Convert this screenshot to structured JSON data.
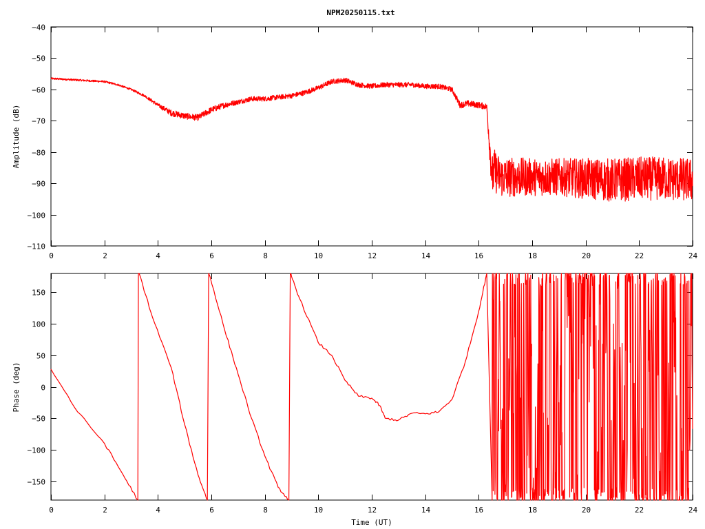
{
  "title": "NPM20250115.txt",
  "colors": {
    "series": "#ff0000",
    "axes": "#000000",
    "background": "#ffffff"
  },
  "chart_data": [
    {
      "type": "line",
      "id": "amplitude",
      "ylabel": "Amplitude (dB)",
      "xlabel": "",
      "xlim": [
        0,
        24
      ],
      "ylim": [
        -110,
        -40
      ],
      "xticks": [
        0,
        2,
        4,
        6,
        8,
        10,
        12,
        14,
        16,
        18,
        20,
        22,
        24
      ],
      "yticks": [
        -40,
        -50,
        -60,
        -70,
        -80,
        -90,
        -100,
        -110
      ],
      "grid": false,
      "legend": "none",
      "series": [
        {
          "x": [
            0,
            1,
            2,
            2.5,
            3,
            3.5,
            4,
            4.5,
            5,
            5.5,
            6,
            6.5,
            7,
            7.5,
            8,
            8.5,
            9,
            9.5,
            10,
            10.5,
            11,
            11.5,
            12,
            12.5,
            13,
            13.5,
            14,
            14.5,
            15,
            15.3,
            15.6,
            16,
            16.3,
            16.5,
            16.6,
            16.8,
            17,
            18,
            19,
            20,
            21,
            22,
            23,
            24
          ],
          "y": [
            -56.5,
            -57,
            -57.5,
            -58.5,
            -60,
            -62,
            -65,
            -67.5,
            -68.5,
            -69,
            -66.5,
            -65,
            -64,
            -63,
            -63,
            -62.5,
            -62,
            -61,
            -59.5,
            -57.5,
            -57,
            -58.5,
            -59,
            -58.5,
            -58.5,
            -58.5,
            -59,
            -59,
            -60,
            -65,
            -64.5,
            -65,
            -65.5,
            -88,
            -86,
            -88,
            -88,
            -88,
            -88,
            -88.5,
            -89,
            -88.5,
            -88.5,
            -89
          ],
          "noise": [
            0.3,
            0.3,
            0.3,
            0.3,
            0.3,
            0.4,
            0.6,
            1,
            1,
            1,
            1,
            0.9,
            0.8,
            0.8,
            0.8,
            0.8,
            0.8,
            0.8,
            0.8,
            0.8,
            0.8,
            0.8,
            0.8,
            0.8,
            0.8,
            0.8,
            0.8,
            0.8,
            0.8,
            1,
            1,
            1,
            1,
            7,
            7,
            6.5,
            6.5,
            6,
            6,
            6.5,
            7,
            7,
            7,
            7
          ]
        }
      ]
    },
    {
      "type": "line",
      "id": "phase",
      "ylabel": "Phase (deg)",
      "xlabel": "Time (UT)",
      "xlim": [
        0,
        24
      ],
      "ylim": [
        -180,
        180
      ],
      "xticks": [
        0,
        2,
        4,
        6,
        8,
        10,
        12,
        14,
        16,
        18,
        20,
        22,
        24
      ],
      "yticks": [
        150,
        100,
        50,
        0,
        -50,
        -100,
        -150
      ],
      "grid": false,
      "legend": "none",
      "series": [
        {
          "x": [
            0,
            1,
            2,
            2.7,
            3.25,
            3.27,
            3.3,
            3.8,
            4.5,
            5,
            5.5,
            5.85,
            5.9,
            5.95,
            6.5,
            7,
            7.5,
            8,
            8.5,
            8.9,
            8.95,
            9,
            9.3,
            10,
            10.5,
            11,
            11.5,
            12,
            12.3,
            12.5,
            13,
            13.5,
            14,
            14.5,
            15,
            15.5,
            16,
            16.3,
            16.5
          ],
          "y": [
            28,
            -40,
            -90,
            -140,
            -180,
            180,
            180,
            110,
            30,
            -60,
            -140,
            -180,
            180,
            175,
            90,
            20,
            -50,
            -110,
            -160,
            -180,
            180,
            175,
            140,
            70,
            50,
            10,
            -15,
            -18,
            -30,
            -50,
            -53,
            -42,
            -43,
            -40,
            -20,
            40,
            120,
            180,
            -180
          ]
        },
        {
          "x": [
            16.5,
            24
          ],
          "random": true,
          "range": [
            -180,
            180
          ]
        }
      ]
    }
  ]
}
